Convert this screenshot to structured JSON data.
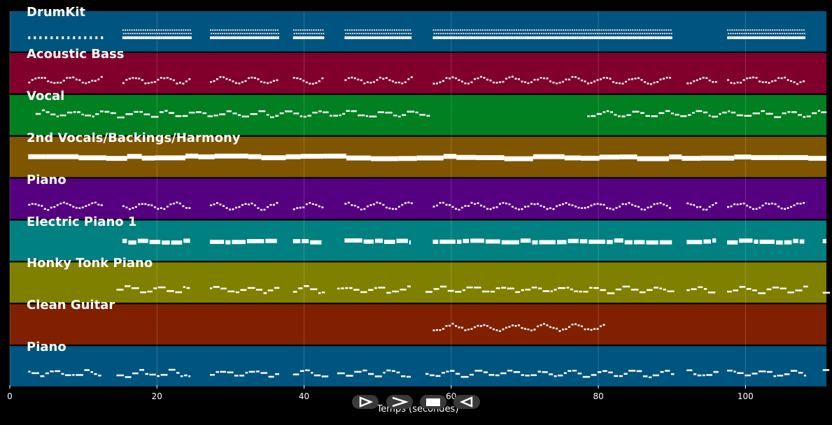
{
  "chart_data": {
    "type": "piano-roll",
    "xlabel": "Temps (secondes)",
    "xlim": [
      0,
      111
    ],
    "xticks": [
      0,
      20,
      40,
      60,
      80,
      100
    ],
    "grid": true,
    "tracks": [
      {
        "name": "DrumKit",
        "color": "#005580"
      },
      {
        "name": "Acoustic Bass",
        "color": "#80002b"
      },
      {
        "name": "Vocal",
        "color": "#008020"
      },
      {
        "name": "2nd Vocals/Backings/Harmony",
        "color": "#805500"
      },
      {
        "name": "Piano",
        "color": "#550080"
      },
      {
        "name": "Electric Piano 1",
        "color": "#008080"
      },
      {
        "name": "Honky Tonk Piano",
        "color": "#808000"
      },
      {
        "name": "Clean Guitar",
        "color": "#802000"
      },
      {
        "name": "Piano",
        "color": "#005580"
      }
    ],
    "track_activity": [
      [
        [
          2.5,
          12.5
        ],
        [
          15.3,
          24.5
        ],
        [
          27.2,
          36.5
        ],
        [
          38.5,
          42.5
        ],
        [
          45.5,
          54.5
        ],
        [
          57.5,
          90
        ],
        [
          97.5,
          108
        ]
      ],
      [
        [
          2.5,
          12.5
        ],
        [
          15.3,
          24.5
        ],
        [
          27.2,
          36.5
        ],
        [
          38.5,
          42.5
        ],
        [
          45.5,
          54.5
        ],
        [
          57.5,
          90
        ],
        [
          92,
          96
        ],
        [
          97.5,
          108
        ]
      ],
      [
        [
          3.5,
          57
        ],
        [
          78.5,
          111
        ]
      ],
      [
        [
          2.5,
          111
        ]
      ],
      [
        [
          2.5,
          12.5
        ],
        [
          15.3,
          24.5
        ],
        [
          27.2,
          36.5
        ],
        [
          38.5,
          42.5
        ],
        [
          45.5,
          54.5
        ],
        [
          57.5,
          90
        ],
        [
          92,
          96
        ],
        [
          97.5,
          108
        ]
      ],
      [
        [
          15.3,
          24.5
        ],
        [
          27.2,
          36.5
        ],
        [
          38.5,
          42.5
        ],
        [
          45.5,
          54.5
        ],
        [
          57.5,
          90
        ],
        [
          92,
          96
        ],
        [
          97.5,
          108
        ],
        [
          110.5,
          111
        ]
      ],
      [
        [
          14.5,
          24.5
        ],
        [
          27.2,
          36.5
        ],
        [
          38.5,
          42.5
        ],
        [
          44.5,
          54.5
        ],
        [
          56.5,
          90
        ],
        [
          92,
          96
        ],
        [
          97.5,
          108
        ],
        [
          110.5,
          111
        ]
      ],
      [
        [
          57.5,
          81
        ]
      ],
      [
        [
          2.5,
          12.5
        ],
        [
          14.5,
          24.5
        ],
        [
          27.2,
          36.5
        ],
        [
          38.5,
          42.5
        ],
        [
          44.5,
          54.5
        ],
        [
          56.5,
          90
        ],
        [
          92,
          96
        ],
        [
          97.5,
          108
        ],
        [
          110.5,
          111
        ]
      ]
    ]
  },
  "controls": [
    {
      "name": "play-icon"
    },
    {
      "name": "fast-forward-icon"
    },
    {
      "name": "stop-icon"
    },
    {
      "name": "rewind-icon"
    }
  ]
}
